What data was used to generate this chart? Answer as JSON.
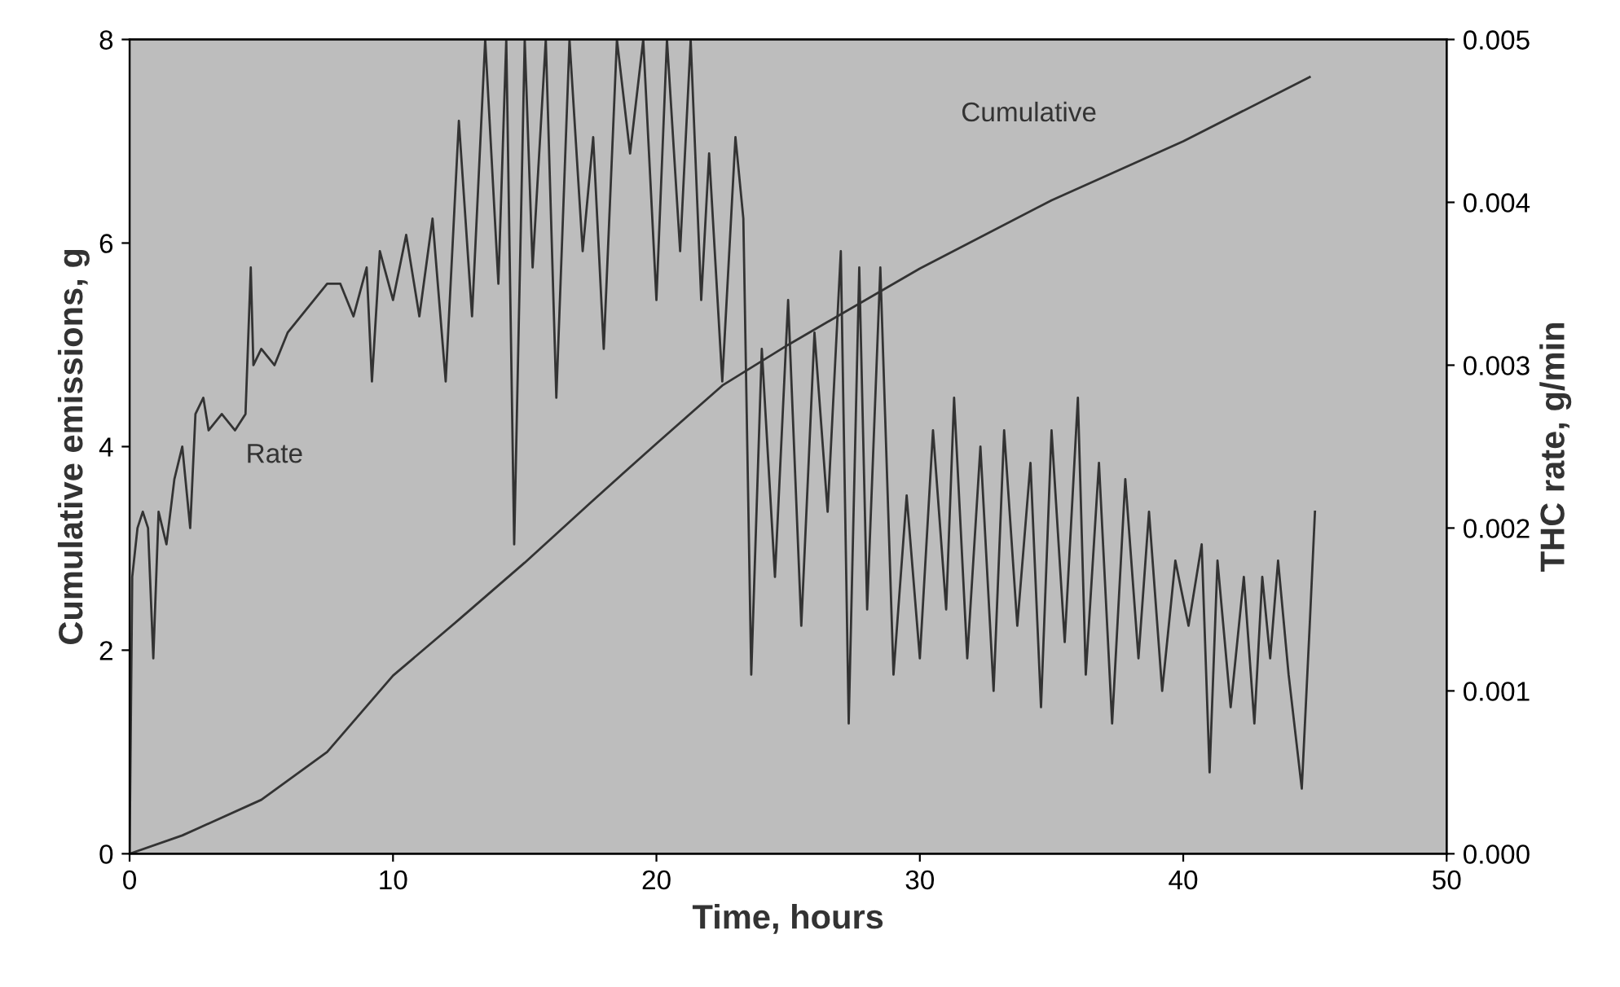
{
  "chart_data": {
    "type": "line",
    "xlabel": "Time, hours",
    "ylabel": "Cumulative emissions, g",
    "y2label": "THC rate, g/min",
    "xlim": [
      0,
      50
    ],
    "xticks": [
      0,
      10,
      20,
      30,
      40,
      50
    ],
    "ylim": [
      0,
      8
    ],
    "yticks": [
      0,
      2,
      4,
      6,
      8
    ],
    "y2lim": [
      0,
      0.005
    ],
    "y2ticks": [
      {
        "value": 0,
        "label": "0.000"
      },
      {
        "value": 0.001,
        "label": "0.001"
      },
      {
        "value": 0.002,
        "label": "0.002"
      },
      {
        "value": 0.003,
        "label": "0.003"
      },
      {
        "value": 0.004,
        "label": "0.004"
      },
      {
        "value": 0.005,
        "label": "0.005"
      }
    ],
    "grid": false,
    "marker": "none",
    "line_style": "solid",
    "series": [
      {
        "name": "Cumulative",
        "color": "#333333",
        "x": [
          0,
          2,
          5,
          7.5,
          10,
          12.5,
          15,
          17.5,
          20,
          22.5,
          25,
          30,
          35,
          40,
          44.8
        ],
        "values": [
          0,
          0.18,
          0.53,
          1.0,
          1.75,
          2.3,
          2.86,
          3.45,
          4.03,
          4.6,
          5.0,
          5.75,
          6.42,
          7.0,
          7.63
        ]
      },
      {
        "name": "Rate",
        "color": "#333333",
        "axis": "y2",
        "x": [
          0,
          0.1,
          0.3,
          0.5,
          0.7,
          0.9,
          1.1,
          1.4,
          1.7,
          2.0,
          2.3,
          2.5,
          2.8,
          3.0,
          3.5,
          4.0,
          4.4,
          4.6,
          4.7,
          5.0,
          5.5,
          6.0,
          7.0,
          7.5,
          8.0,
          8.5,
          9.0,
          9.2,
          9.5,
          10,
          10.5,
          11,
          11.5,
          12,
          12.5,
          13,
          13.5,
          14,
          14.3,
          14.6,
          15,
          15.3,
          15.8,
          16.2,
          16.7,
          17.2,
          17.6,
          18,
          18.5,
          19,
          19.5,
          20,
          20.4,
          20.9,
          21.3,
          21.7,
          22,
          22.5,
          23,
          23.3,
          23.6,
          24,
          24.5,
          25,
          25.5,
          26,
          26.5,
          27,
          27.3,
          27.7,
          28,
          28.5,
          29,
          29.5,
          30,
          30.5,
          31,
          31.3,
          31.8,
          32.3,
          32.8,
          33.2,
          33.7,
          34.2,
          34.6,
          35,
          35.5,
          36,
          36.3,
          36.8,
          37.3,
          37.8,
          38.3,
          38.7,
          39.2,
          39.7,
          40.2,
          40.7,
          41,
          41.3,
          41.8,
          42.3,
          42.7,
          43,
          43.3,
          43.6,
          44,
          44.5,
          44.8,
          45
        ],
        "values": [
          0.0,
          0.0017,
          0.002,
          0.0021,
          0.002,
          0.0012,
          0.0021,
          0.0019,
          0.0023,
          0.0025,
          0.002,
          0.0027,
          0.0028,
          0.0026,
          0.0027,
          0.0026,
          0.0027,
          0.0036,
          0.003,
          0.0031,
          0.003,
          0.0032,
          0.0034,
          0.0035,
          0.0035,
          0.0033,
          0.0036,
          0.0029,
          0.0037,
          0.0034,
          0.0038,
          0.0033,
          0.0039,
          0.0029,
          0.0045,
          0.0033,
          0.005,
          0.0035,
          0.005,
          0.0019,
          0.005,
          0.0036,
          0.005,
          0.0028,
          0.005,
          0.0037,
          0.0044,
          0.0031,
          0.005,
          0.0043,
          0.005,
          0.0034,
          0.005,
          0.0037,
          0.005,
          0.0034,
          0.0043,
          0.0029,
          0.0044,
          0.0039,
          0.0011,
          0.0031,
          0.0017,
          0.0034,
          0.0014,
          0.0032,
          0.0021,
          0.0037,
          0.0008,
          0.0036,
          0.0015,
          0.0036,
          0.0011,
          0.0022,
          0.0012,
          0.0026,
          0.0015,
          0.0028,
          0.0012,
          0.0025,
          0.001,
          0.0026,
          0.0014,
          0.0024,
          0.0009,
          0.0026,
          0.0013,
          0.0028,
          0.0011,
          0.0024,
          0.0008,
          0.0023,
          0.0012,
          0.0021,
          0.001,
          0.0018,
          0.0014,
          0.0019,
          0.0005,
          0.0018,
          0.0009,
          0.0017,
          0.0008,
          0.0017,
          0.0012,
          0.0018,
          0.0011,
          0.0004,
          0.0014,
          0.0021
        ]
      }
    ]
  }
}
